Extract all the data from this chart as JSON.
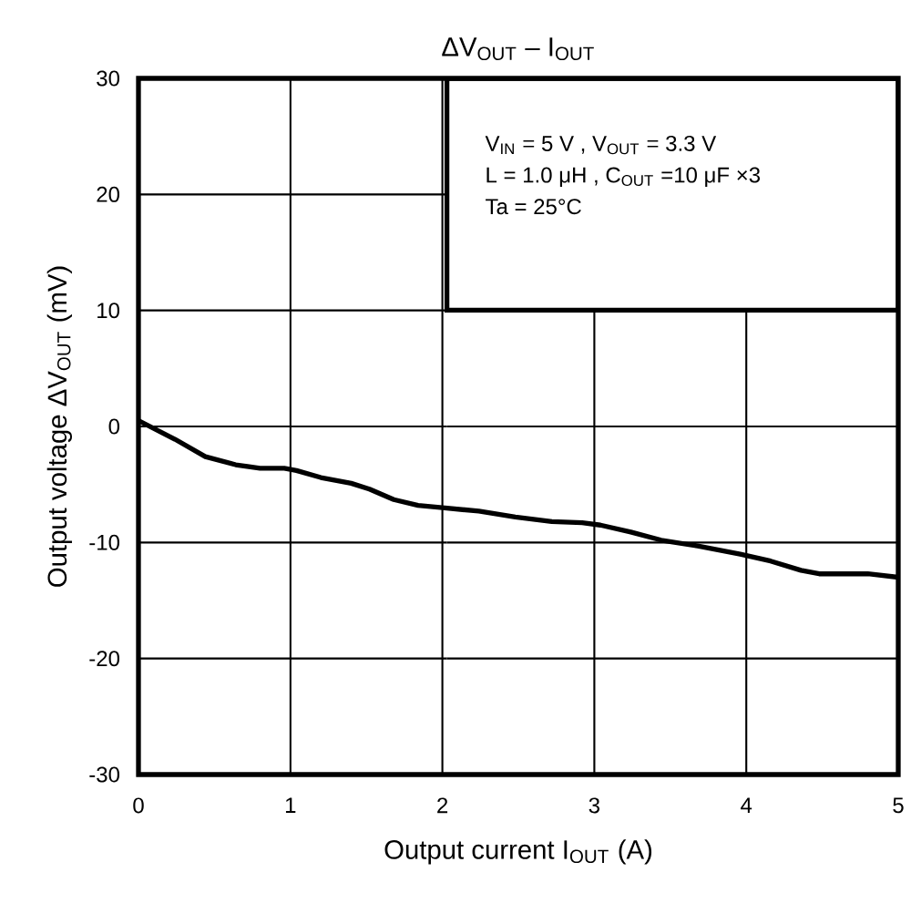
{
  "chart_data": {
    "type": "line",
    "title": "ΔV$_{OUT}$ – I$_{OUT}$",
    "xlabel": "Output current   I$_{OUT}$   (A)",
    "ylabel": "Output voltage   ΔV$_{OUT}$   (mV)",
    "annotations": [
      "V$_{IN}$ = 5 V , V$_{OUT}$ = 3.3 V",
      "L = 1.0 μH , C$_{OUT}$ =10 μF  ×3",
      "Ta = 25°C"
    ],
    "x": [
      0,
      0.24,
      0.44,
      0.64,
      0.8,
      0.96,
      1.04,
      1.2,
      1.4,
      1.52,
      1.68,
      1.84,
      2.0,
      2.24,
      2.48,
      2.72,
      2.92,
      3.04,
      3.24,
      3.44,
      3.68,
      3.96,
      4.16,
      4.36,
      4.48,
      4.8,
      5.0
    ],
    "values": [
      0.5,
      -1.1,
      -2.6,
      -3.3,
      -3.6,
      -3.6,
      -3.8,
      -4.4,
      -4.9,
      -5.4,
      -6.3,
      -6.8,
      -7.0,
      -7.3,
      -7.8,
      -8.2,
      -8.3,
      -8.5,
      -9.1,
      -9.8,
      -10.3,
      -11.0,
      -11.6,
      -12.4,
      -12.7,
      -12.7,
      -13.0
    ],
    "color": "#000000",
    "xlim": [
      0,
      5
    ],
    "ylim": [
      -30,
      30
    ],
    "xticks": [
      0,
      1,
      2,
      3,
      4,
      5
    ],
    "yticks": [
      -30,
      -20,
      -10,
      0,
      10,
      20,
      30
    ],
    "grid": true,
    "line_style": "solid",
    "marker": "none"
  }
}
